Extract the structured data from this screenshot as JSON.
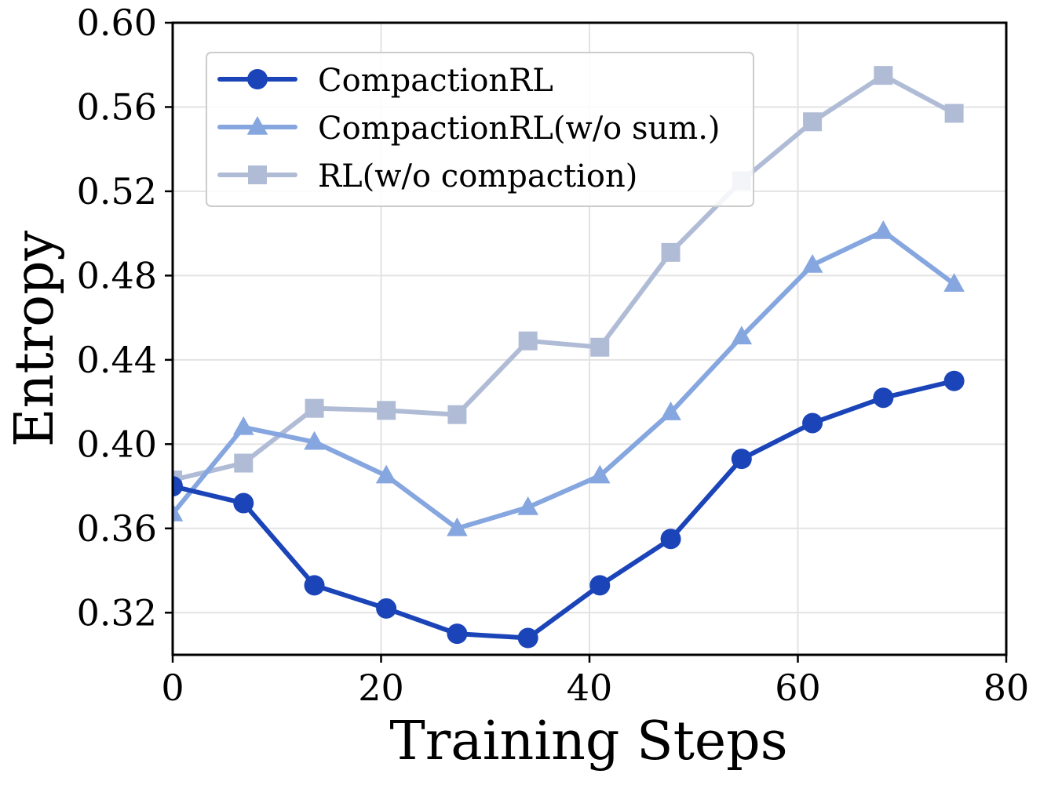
{
  "chart_data": {
    "type": "line",
    "title": "",
    "xlabel": "Training Steps",
    "ylabel": "Entropy",
    "xlim": [
      0,
      80
    ],
    "ylim": [
      0.3,
      0.6
    ],
    "x_ticks": [
      0,
      20,
      40,
      60,
      80
    ],
    "x_tick_labels": [
      "0",
      "20",
      "40",
      "60",
      "80"
    ],
    "y_ticks": [
      0.32,
      0.36,
      0.4,
      0.44,
      0.48,
      0.52,
      0.56,
      0.6
    ],
    "y_tick_labels": [
      "0.32",
      "0.36",
      "0.40",
      "0.44",
      "0.48",
      "0.52",
      "0.56",
      "0.60"
    ],
    "grid": true,
    "legend_position": "top-left",
    "x": [
      0,
      6.8,
      13.6,
      20.5,
      27.3,
      34.1,
      41,
      47.8,
      54.6,
      61.4,
      68.2,
      75
    ],
    "series": [
      {
        "name": "CompactionRL",
        "marker": "circle",
        "color": "#1a44b8",
        "values": [
          0.38,
          0.372,
          0.333,
          0.322,
          0.31,
          0.308,
          0.333,
          0.355,
          0.393,
          0.41,
          0.422,
          0.43
        ]
      },
      {
        "name": "CompactionRL(w/o sum.)",
        "marker": "triangle",
        "color": "#86a6df",
        "values": [
          0.367,
          0.408,
          0.401,
          0.385,
          0.36,
          0.37,
          0.385,
          0.415,
          0.451,
          0.485,
          0.501,
          0.476
        ]
      },
      {
        "name": "RL(w/o compaction)",
        "marker": "square",
        "color": "#b0bcd6",
        "values": [
          0.383,
          0.391,
          0.417,
          0.416,
          0.414,
          0.449,
          0.446,
          0.491,
          0.525,
          0.553,
          0.575,
          0.557
        ]
      }
    ]
  }
}
